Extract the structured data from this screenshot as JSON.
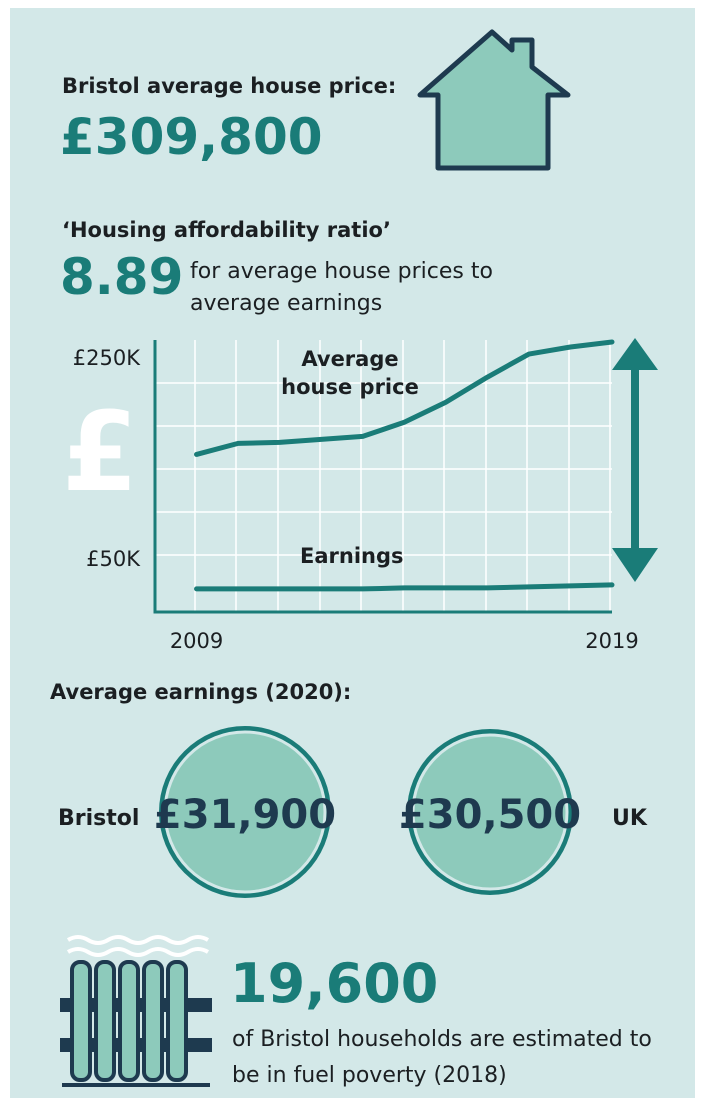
{
  "header": {
    "title": "Bristol average house price:",
    "value": "£309,800"
  },
  "ratio": {
    "title": "‘Housing affordability ratio’",
    "value": "8.89",
    "description": "for average house prices to average earnings"
  },
  "chart": {
    "type": "line",
    "icon_text": "£",
    "xlim": [
      2008,
      2019
    ],
    "xticks": [
      2009,
      2019
    ],
    "ylim": [
      -4000,
      267000
    ],
    "yticks": [
      {
        "value": 50000,
        "label": "£50K"
      },
      {
        "value": 250000,
        "label": "£250K"
      }
    ],
    "x": [
      2009,
      2010,
      2011,
      2012,
      2013,
      2014,
      2015,
      2016,
      2017,
      2018,
      2019
    ],
    "series": [
      {
        "name": "Average house price",
        "color": "#1a7c78",
        "values": [
          153000,
          164000,
          165000,
          168000,
          171000,
          185000,
          205000,
          230000,
          253000,
          260000,
          265000
        ]
      },
      {
        "name": "Earnings",
        "color": "#1a7c78",
        "values": [
          19000,
          19000,
          19000,
          19000,
          19000,
          20000,
          20000,
          20000,
          21000,
          22000,
          23000
        ]
      }
    ]
  },
  "earnings": {
    "title": "Average earnings (2020):",
    "items": [
      {
        "label": "Bristol",
        "value": "£31,900"
      },
      {
        "label": "UK",
        "value": "£30,500"
      }
    ]
  },
  "fuel_poverty": {
    "value": "19,600",
    "description": "of Bristol households are estimated to be in fuel poverty (2018)"
  }
}
